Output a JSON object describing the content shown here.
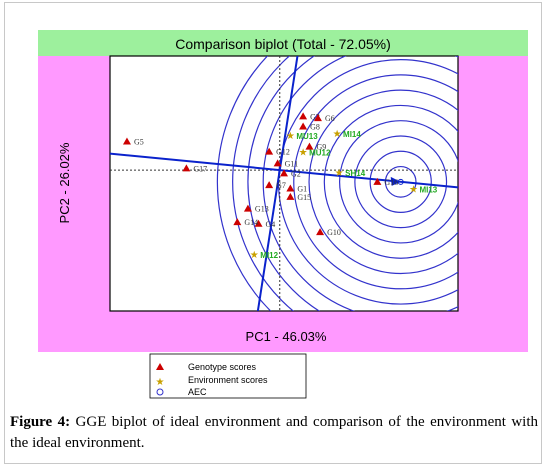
{
  "chart_data": {
    "type": "scatter",
    "title": "Comparison biplot (Total - 72.05%)",
    "xlabel": "PC1 - 46.03%",
    "ylabel": "PC2 - 26.02%",
    "xlim": [
      -4.0,
      4.2
    ],
    "ylim": [
      -4.2,
      3.4
    ],
    "colors": {
      "header_band": "#9df09d",
      "side_band": "#ff99ff",
      "genotype": "#cc0000",
      "environment": "#22aa22",
      "circles": "#3333cc",
      "aec": "#0a22cc"
    },
    "aec_center": [
      2.85,
      -0.35
    ],
    "circle_step": 0.36,
    "circle_count": 12,
    "genotypes": [
      {
        "label": "G1",
        "x": 0.25,
        "y": -0.55
      },
      {
        "label": "G2",
        "x": 0.1,
        "y": -0.1
      },
      {
        "label": "G3",
        "x": 0.55,
        "y": 1.6
      },
      {
        "label": "G4",
        "x": -0.5,
        "y": -1.6
      },
      {
        "label": "G5",
        "x": -3.6,
        "y": 0.85
      },
      {
        "label": "G6",
        "x": 0.9,
        "y": 1.55
      },
      {
        "label": "G7",
        "x": -0.25,
        "y": -0.45
      },
      {
        "label": "G8",
        "x": 0.55,
        "y": 1.3
      },
      {
        "label": "G9",
        "x": 0.7,
        "y": 0.7
      },
      {
        "label": "G10",
        "x": 0.95,
        "y": -1.85
      },
      {
        "label": "G11",
        "x": -0.05,
        "y": 0.2
      },
      {
        "label": "G12",
        "x": -0.25,
        "y": 0.55
      },
      {
        "label": "G13",
        "x": -0.75,
        "y": -1.15
      },
      {
        "label": "G14",
        "x": -1.0,
        "y": -1.55
      },
      {
        "label": "G15",
        "x": 0.25,
        "y": -0.8
      },
      {
        "label": "G16",
        "x": 2.3,
        "y": -0.35
      },
      {
        "label": "G17",
        "x": -2.2,
        "y": 0.05
      }
    ],
    "environments": [
      {
        "label": "MI12",
        "x": -0.6,
        "y": -2.5
      },
      {
        "label": "MI13",
        "x": 3.15,
        "y": -0.55
      },
      {
        "label": "MI14",
        "x": 1.35,
        "y": 1.1
      },
      {
        "label": "MU12",
        "x": 0.55,
        "y": 0.55
      },
      {
        "label": "MU13",
        "x": 0.25,
        "y": 1.05
      },
      {
        "label": "SH14",
        "x": 1.4,
        "y": -0.05
      }
    ],
    "legend": {
      "placement": "bottom-left",
      "items": [
        "Genotype scores",
        "Environment scores",
        "AEC"
      ]
    }
  },
  "caption": {
    "label": "Figure 4:",
    "text": " GGE biplot of ideal environment and comparison of the environment with the ideal environment."
  }
}
